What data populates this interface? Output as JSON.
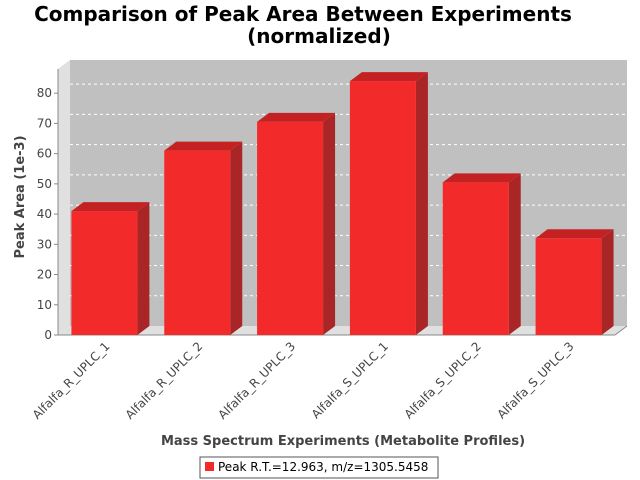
{
  "chart_data": {
    "type": "bar",
    "title": "Comparison of Peak Area Between Experiments",
    "subtitle": "(normalized)",
    "xlabel": "Mass Spectrum Experiments (Metabolite Profiles)",
    "ylabel": "Peak Area (1e-3)",
    "categories": [
      "Alfalfa_R_UPLC_1",
      "Alfalfa_R_UPLC_2",
      "Alfalfa_R_UPLC_3",
      "Alfalfa_S_UPLC_1",
      "Alfalfa_S_UPLC_2",
      "Alfalfa_S_UPLC_3"
    ],
    "series": [
      {
        "name": "Peak R.T.=12.963, m/z=1305.5458",
        "values": [
          41,
          61,
          70.5,
          84,
          50.5,
          32
        ]
      }
    ],
    "ylim": [
      0,
      88
    ],
    "yticks": [
      0,
      10,
      20,
      30,
      40,
      50,
      60,
      70,
      80
    ],
    "grid": true,
    "legend_position": "bottom",
    "colors": {
      "bar_front": "#f22a2a",
      "bar_top": "#c42222",
      "bar_side": "#aa2626",
      "plot_bg": "#c0c0c0",
      "plot_wall": "#e0e0e0",
      "axis": "#888888"
    }
  }
}
